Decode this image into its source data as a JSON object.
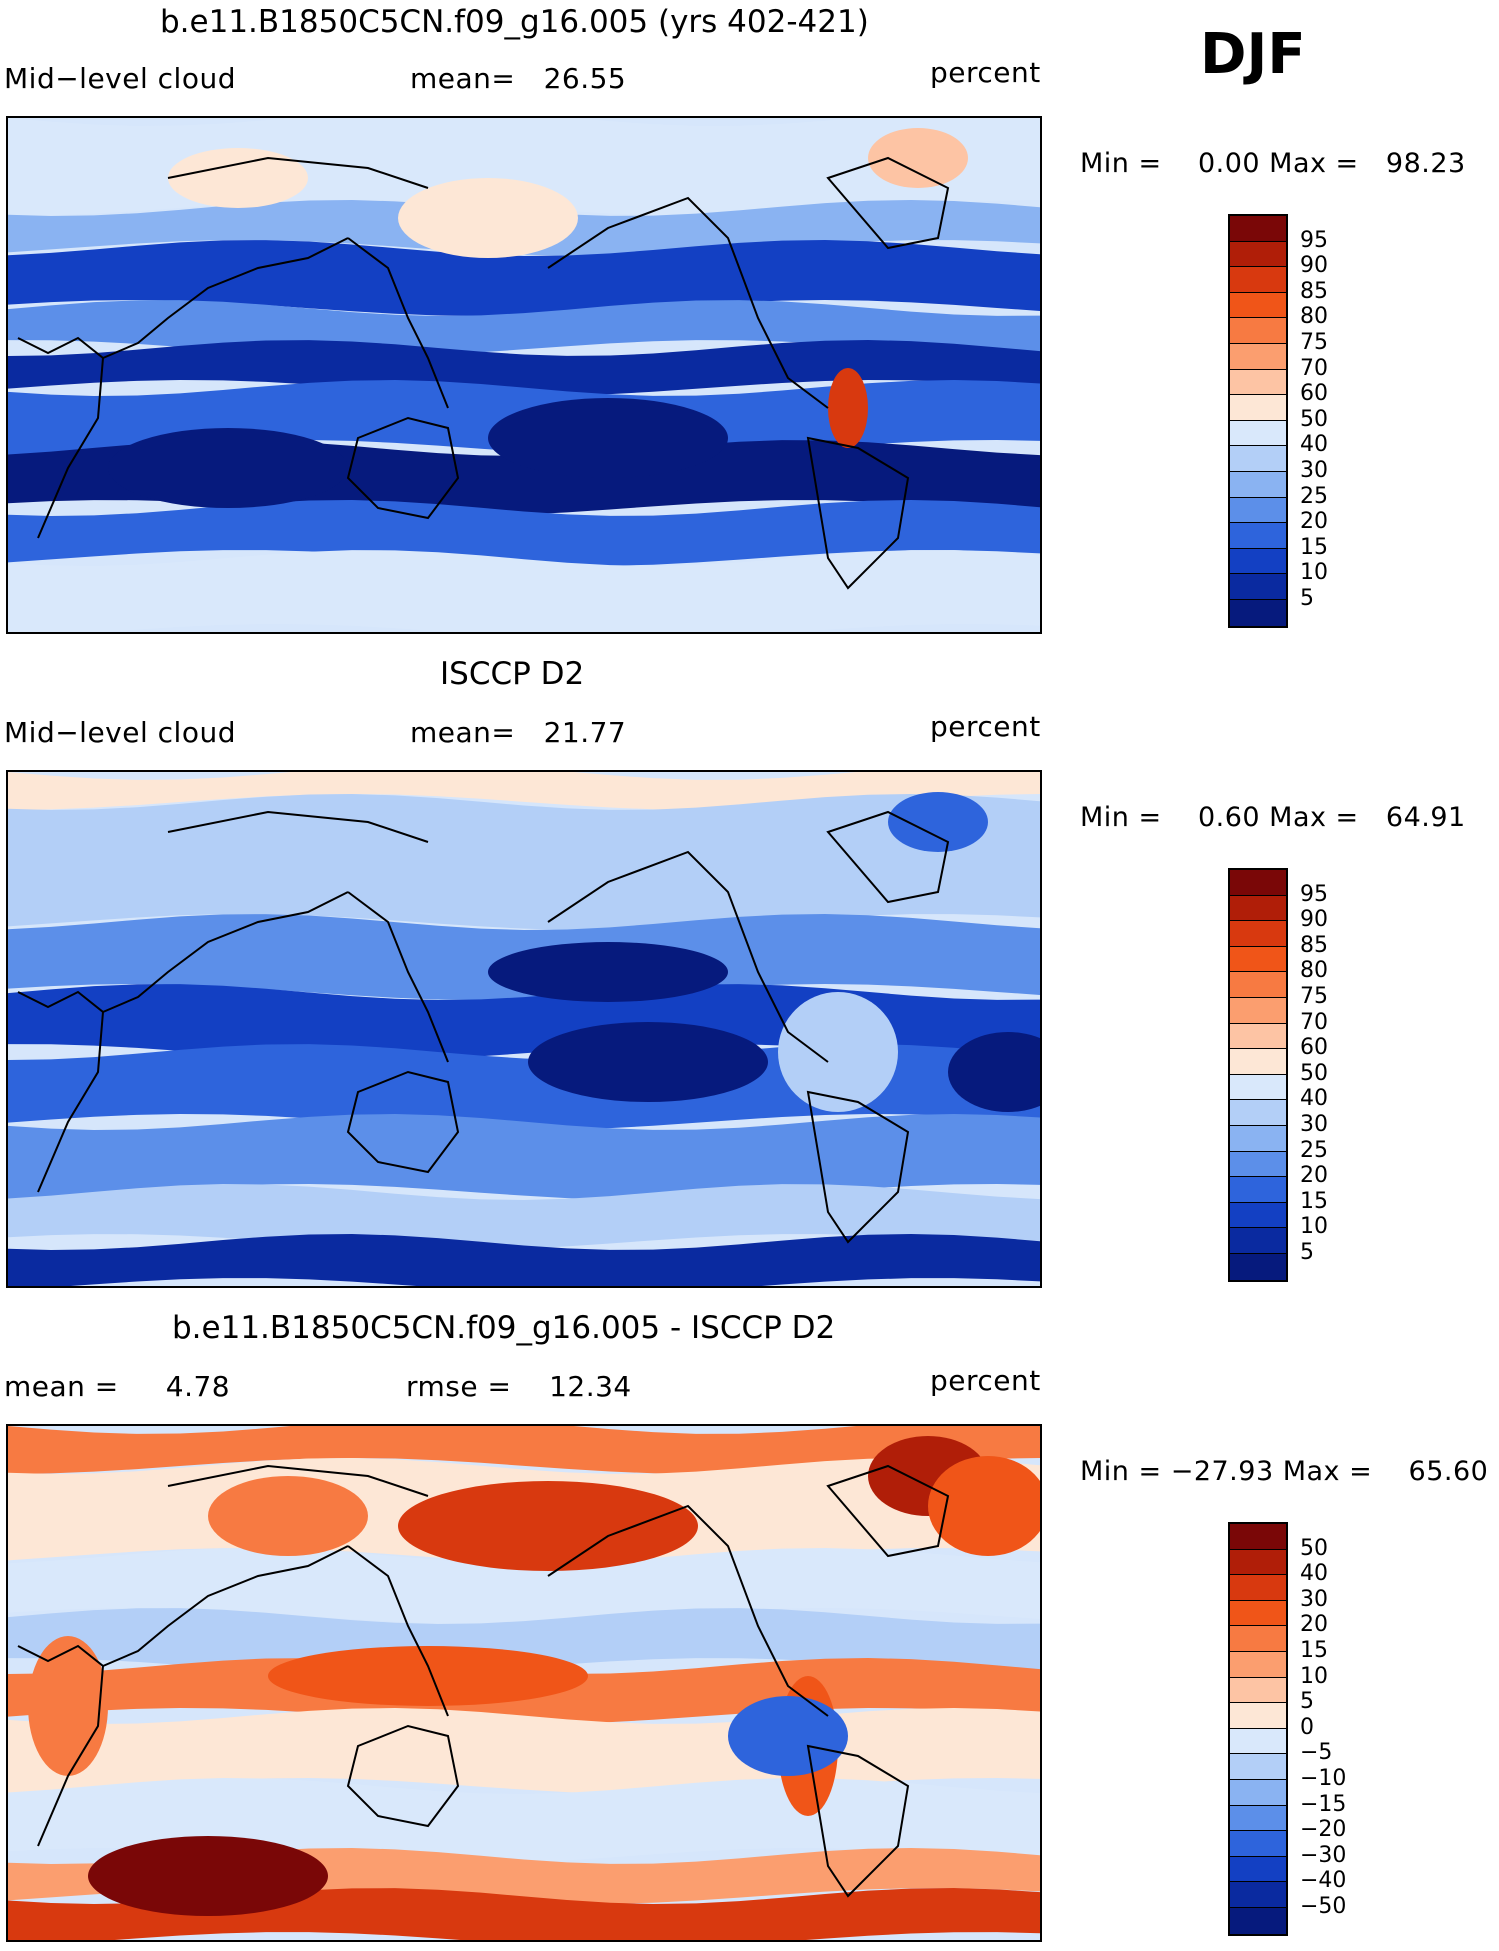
{
  "season": "DJF",
  "panels": [
    {
      "title": "b.e11.B1850C5CN.f09_g16.005 (yrs 402-421)",
      "left_label": "Mid−level cloud",
      "mid_label": "mean=   26.55",
      "units": "percent",
      "minmax": "Min =    0.00 Max =   98.23",
      "levels": [
        "95",
        "90",
        "85",
        "80",
        "75",
        "70",
        "60",
        "50",
        "40",
        "30",
        "25",
        "20",
        "15",
        "10",
        "5"
      ],
      "colors": [
        "#7a0707",
        "#b01e08",
        "#d8390f",
        "#f05518",
        "#f77a42",
        "#fb9e6f",
        "#fdc4a4",
        "#fde7d6",
        "#d9e8fb",
        "#b3cff7",
        "#8ab3f2",
        "#5c8fe9",
        "#2e64dc",
        "#1340c3",
        "#0a2aa0",
        "#061a7d"
      ]
    },
    {
      "title": "ISCCP D2",
      "left_label": "Mid−level cloud",
      "mid_label": "mean=   21.77",
      "units": "percent",
      "minmax": "Min =    0.60 Max =   64.91",
      "levels": [
        "95",
        "90",
        "85",
        "80",
        "75",
        "70",
        "60",
        "50",
        "40",
        "30",
        "25",
        "20",
        "15",
        "10",
        "5"
      ],
      "colors": [
        "#7a0707",
        "#b01e08",
        "#d8390f",
        "#f05518",
        "#f77a42",
        "#fb9e6f",
        "#fdc4a4",
        "#fde7d6",
        "#d9e8fb",
        "#b3cff7",
        "#8ab3f2",
        "#5c8fe9",
        "#2e64dc",
        "#1340c3",
        "#0a2aa0",
        "#061a7d"
      ]
    },
    {
      "title": "b.e11.B1850C5CN.f09_g16.005 - ISCCP D2",
      "left_label": "mean =     4.78",
      "mid_label": "rmse =    12.34",
      "units": "percent",
      "minmax": "Min = −27.93 Max =    65.60",
      "levels": [
        "50",
        "40",
        "30",
        "20",
        "15",
        "10",
        "5",
        "0",
        "−5",
        "−10",
        "−15",
        "−20",
        "−30",
        "−40",
        "−50"
      ],
      "colors": [
        "#7a0707",
        "#b01e08",
        "#d8390f",
        "#f05518",
        "#f77a42",
        "#fb9e6f",
        "#fdc4a4",
        "#fde7d6",
        "#d9e8fb",
        "#b3cff7",
        "#8ab3f2",
        "#5c8fe9",
        "#2e64dc",
        "#1340c3",
        "#0a2aa0",
        "#061a7d"
      ]
    }
  ]
}
